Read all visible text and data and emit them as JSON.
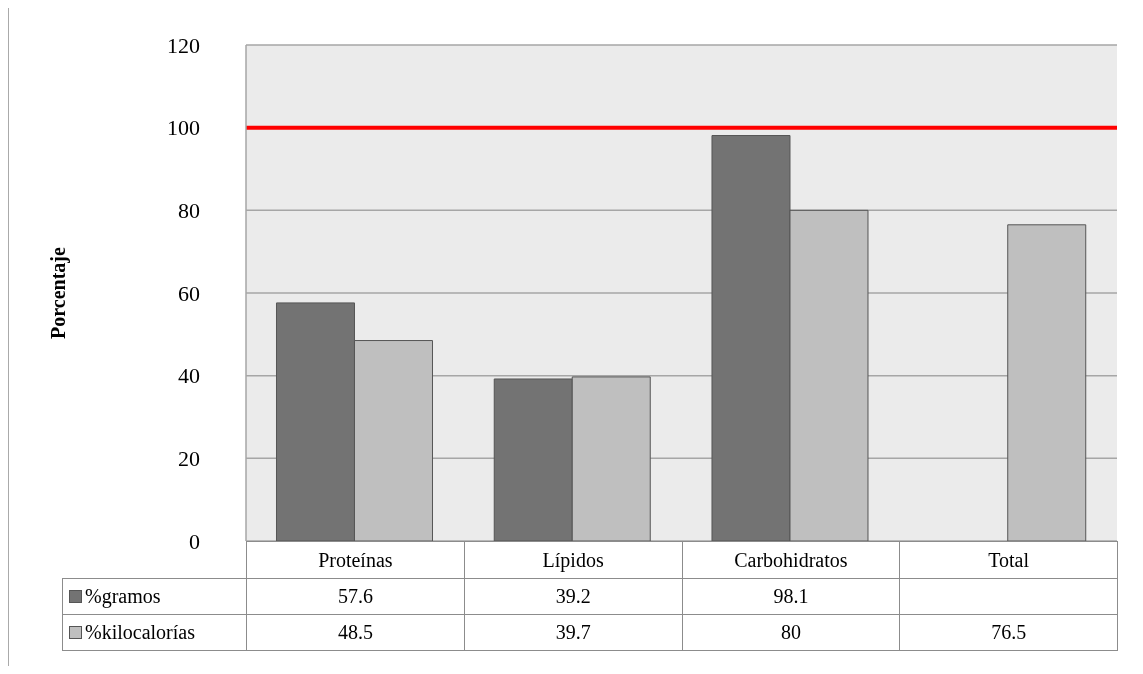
{
  "chart_data": {
    "type": "bar",
    "ylabel": "Porcentaje",
    "categories": [
      "Proteínas",
      "Lípidos",
      "Carbohidratos",
      "Total"
    ],
    "series": [
      {
        "name": "%gramos",
        "color": "#737373",
        "values": [
          57.6,
          39.2,
          98.1,
          null
        ]
      },
      {
        "name": "%kilocalorías",
        "color": "#bfbfbf",
        "values": [
          48.5,
          39.7,
          80,
          76.5
        ]
      }
    ],
    "ylim": [
      0,
      120
    ],
    "yticks": [
      0,
      20,
      40,
      60,
      80,
      100,
      120
    ],
    "grid": "y",
    "legend": "bottom",
    "data_labels": true,
    "ref_lines": [
      {
        "axis": "y",
        "value": 100,
        "color": "#ff0000"
      }
    ]
  }
}
